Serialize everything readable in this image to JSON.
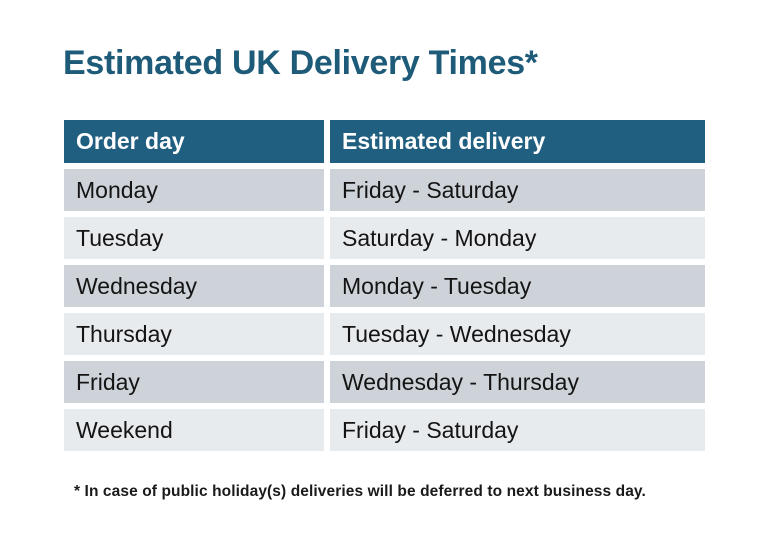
{
  "page": {
    "title": "Estimated UK Delivery Times*",
    "footnote": "* In case of public holiday(s) deliveries will be deferred to next business day."
  },
  "table": {
    "columns": [
      "Order day",
      "Estimated delivery"
    ],
    "rows": [
      {
        "order_day": "Monday",
        "estimated_delivery": "Friday - Saturday"
      },
      {
        "order_day": "Tuesday",
        "estimated_delivery": "Saturday - Monday"
      },
      {
        "order_day": "Wednesday",
        "estimated_delivery": "Monday - Tuesday"
      },
      {
        "order_day": "Thursday",
        "estimated_delivery": "Tuesday - Wednesday"
      },
      {
        "order_day": "Friday",
        "estimated_delivery": "Wednesday - Thursday"
      },
      {
        "order_day": "Weekend",
        "estimated_delivery": "Friday - Saturday"
      }
    ]
  },
  "colors": {
    "header_bg": "#215F80",
    "header_text": "#FFFFFF",
    "title_text": "#1E5B79",
    "row_dark": "#CED3D9",
    "row_light": "#E8EBEE",
    "body_text": "#141414",
    "page_bg": "#FFFFFF"
  }
}
